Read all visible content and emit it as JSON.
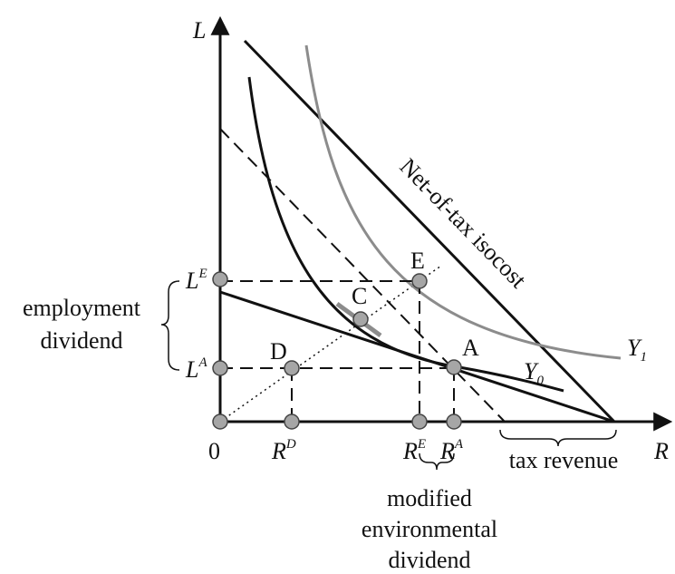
{
  "axes": {
    "y_label": "L",
    "x_label": "R",
    "origin": "0"
  },
  "y_ticks": [
    {
      "base": "L",
      "sup": "E"
    },
    {
      "base": "L",
      "sup": "A"
    }
  ],
  "x_ticks": [
    {
      "base": "R",
      "sup": "D"
    },
    {
      "base": "R",
      "sup": "E"
    },
    {
      "base": "R",
      "sup": "A"
    }
  ],
  "points": [
    "E",
    "C",
    "D",
    "A"
  ],
  "curves": [
    {
      "base": "Y",
      "sub": "0"
    },
    {
      "base": "Y",
      "sub": "1"
    }
  ],
  "isocost_label": "Net-of-tax isocost",
  "employment_dividend": [
    "employment",
    "dividend"
  ],
  "tax_revenue": "tax revenue",
  "environmental_dividend": [
    "modified",
    "environmental",
    "dividend"
  ]
}
